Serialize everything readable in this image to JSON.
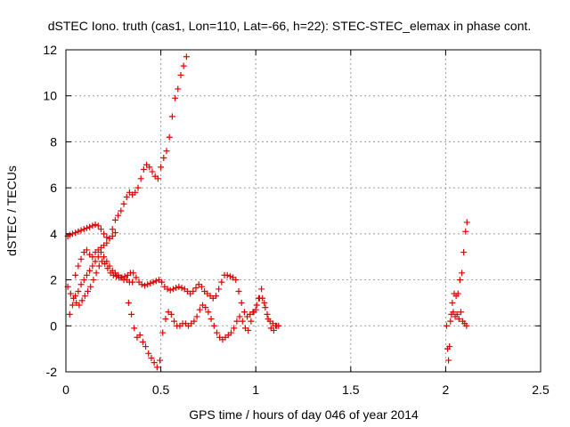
{
  "chart_data": {
    "type": "scatter",
    "title": "dSTEC Iono. truth (cas1, Lon=110, Lat=-66, h=22): STEC-STEC_elemax in phase cont.",
    "xlabel": "GPS time / hours of day 046 of year 2014",
    "ylabel": "dSTEC  / TECUs",
    "xlim": [
      0,
      2.5
    ],
    "ylim": [
      -2,
      12
    ],
    "grid": true,
    "marker": "+",
    "colors": {
      "series": "#e00000",
      "grid": "#9a9a9a",
      "axis": "#000000"
    },
    "x_ticks": [
      {
        "value": 0,
        "label": "0"
      },
      {
        "value": 0.5,
        "label": "0.5"
      },
      {
        "value": 1,
        "label": "1"
      },
      {
        "value": 1.5,
        "label": "1.5"
      },
      {
        "value": 2,
        "label": "2"
      },
      {
        "value": 2.5,
        "label": "2.5"
      }
    ],
    "y_ticks": [
      {
        "value": -2,
        "label": "-2"
      },
      {
        "value": 0,
        "label": "0"
      },
      {
        "value": 2,
        "label": "2"
      },
      {
        "value": 4,
        "label": "4"
      },
      {
        "value": 6,
        "label": "6"
      },
      {
        "value": 8,
        "label": "8"
      },
      {
        "value": 10,
        "label": "10"
      },
      {
        "value": 12,
        "label": "12"
      }
    ],
    "series": [
      {
        "name": "dSTEC",
        "points": [
          [
            0.01,
            3.9
          ],
          [
            0.02,
            3.95
          ],
          [
            0.035,
            4.0
          ],
          [
            0.05,
            4.05
          ],
          [
            0.065,
            4.1
          ],
          [
            0.08,
            4.15
          ],
          [
            0.095,
            4.2
          ],
          [
            0.11,
            4.25
          ],
          [
            0.125,
            4.3
          ],
          [
            0.14,
            4.35
          ],
          [
            0.155,
            4.4
          ],
          [
            0.17,
            4.35
          ],
          [
            0.185,
            4.2
          ],
          [
            0.2,
            4.0
          ],
          [
            0.215,
            3.85
          ],
          [
            0.23,
            3.8
          ],
          [
            0.245,
            3.9
          ],
          [
            0.26,
            4.05
          ],
          [
            0.01,
            1.7
          ],
          [
            0.025,
            1.4
          ],
          [
            0.04,
            1.2
          ],
          [
            0.055,
            1.0
          ],
          [
            0.07,
            0.9
          ],
          [
            0.085,
            1.1
          ],
          [
            0.1,
            1.3
          ],
          [
            0.115,
            1.5
          ],
          [
            0.13,
            1.7
          ],
          [
            0.145,
            2.0
          ],
          [
            0.16,
            2.3
          ],
          [
            0.175,
            2.6
          ],
          [
            0.19,
            2.8
          ],
          [
            0.205,
            2.7
          ],
          [
            0.22,
            2.5
          ],
          [
            0.235,
            2.3
          ],
          [
            0.25,
            2.2
          ],
          [
            0.265,
            2.15
          ],
          [
            0.28,
            2.1
          ],
          [
            0.295,
            2.1
          ],
          [
            0.31,
            2.15
          ],
          [
            0.325,
            2.2
          ],
          [
            0.34,
            2.3
          ],
          [
            0.355,
            2.3
          ],
          [
            0.37,
            2.1
          ],
          [
            0.385,
            1.9
          ],
          [
            0.4,
            1.8
          ],
          [
            0.415,
            1.75
          ],
          [
            0.43,
            1.8
          ],
          [
            0.445,
            1.85
          ],
          [
            0.46,
            1.9
          ],
          [
            0.475,
            1.95
          ],
          [
            0.49,
            2.0
          ],
          [
            0.505,
            1.9
          ],
          [
            0.52,
            1.7
          ],
          [
            0.535,
            1.6
          ],
          [
            0.55,
            1.55
          ],
          [
            0.565,
            1.6
          ],
          [
            0.58,
            1.65
          ],
          [
            0.595,
            1.7
          ],
          [
            0.61,
            1.65
          ],
          [
            0.625,
            1.6
          ],
          [
            0.64,
            1.5
          ],
          [
            0.655,
            1.4
          ],
          [
            0.67,
            1.5
          ],
          [
            0.685,
            1.65
          ],
          [
            0.7,
            1.8
          ],
          [
            0.715,
            1.7
          ],
          [
            0.73,
            1.5
          ],
          [
            0.745,
            1.4
          ],
          [
            0.76,
            1.3
          ],
          [
            0.775,
            1.2
          ],
          [
            0.79,
            1.3
          ],
          [
            0.805,
            1.6
          ],
          [
            0.82,
            1.9
          ],
          [
            0.835,
            2.2
          ],
          [
            0.85,
            2.2
          ],
          [
            0.865,
            2.15
          ],
          [
            0.88,
            2.1
          ],
          [
            0.895,
            2.0
          ],
          [
            0.91,
            1.5
          ],
          [
            0.925,
            1.0
          ],
          [
            0.94,
            0.6
          ],
          [
            0.955,
            0.4
          ],
          [
            0.97,
            0.5
          ],
          [
            0.985,
            0.6
          ],
          [
            1.0,
            0.7
          ],
          [
            1.015,
            1.2
          ],
          [
            1.03,
            1.6
          ],
          [
            1.045,
            1.0
          ],
          [
            1.06,
            0.5
          ],
          [
            1.075,
            0.2
          ],
          [
            1.09,
            0.1
          ],
          [
            1.105,
            0.0
          ],
          [
            1.12,
            0.0
          ],
          [
            0.05,
            2.2
          ],
          [
            0.065,
            2.6
          ],
          [
            0.08,
            2.9
          ],
          [
            0.095,
            3.2
          ],
          [
            0.11,
            3.3
          ],
          [
            0.125,
            3.1
          ],
          [
            0.14,
            3.0
          ],
          [
            0.155,
            3.2
          ],
          [
            0.17,
            3.3
          ],
          [
            0.185,
            3.4
          ],
          [
            0.2,
            3.5
          ],
          [
            0.215,
            3.6
          ],
          [
            0.23,
            3.8
          ],
          [
            0.245,
            4.2
          ],
          [
            0.26,
            4.6
          ],
          [
            0.275,
            4.8
          ],
          [
            0.29,
            5.0
          ],
          [
            0.305,
            5.3
          ],
          [
            0.32,
            5.6
          ],
          [
            0.335,
            5.8
          ],
          [
            0.35,
            5.7
          ],
          [
            0.365,
            5.8
          ],
          [
            0.38,
            6.0
          ],
          [
            0.395,
            6.4
          ],
          [
            0.41,
            6.8
          ],
          [
            0.425,
            7.0
          ],
          [
            0.44,
            6.9
          ],
          [
            0.455,
            6.7
          ],
          [
            0.47,
            6.5
          ],
          [
            0.485,
            6.4
          ],
          [
            0.5,
            6.9
          ],
          [
            0.515,
            7.3
          ],
          [
            0.53,
            7.6
          ],
          [
            0.545,
            8.2
          ],
          [
            0.56,
            9.1
          ],
          [
            0.575,
            9.9
          ],
          [
            0.59,
            10.3
          ],
          [
            0.605,
            10.9
          ],
          [
            0.62,
            11.3
          ],
          [
            0.635,
            11.7
          ],
          [
            0.02,
            0.5
          ],
          [
            0.035,
            0.9
          ],
          [
            0.05,
            1.3
          ],
          [
            0.065,
            1.5
          ],
          [
            0.08,
            1.8
          ],
          [
            0.095,
            2.0
          ],
          [
            0.11,
            2.2
          ],
          [
            0.125,
            2.4
          ],
          [
            0.14,
            2.6
          ],
          [
            0.155,
            2.8
          ],
          [
            0.17,
            3.0
          ],
          [
            0.185,
            3.2
          ],
          [
            0.2,
            3.0
          ],
          [
            0.215,
            2.8
          ],
          [
            0.23,
            2.6
          ],
          [
            0.245,
            2.4
          ],
          [
            0.26,
            2.3
          ],
          [
            0.275,
            2.2
          ],
          [
            0.29,
            2.1
          ],
          [
            0.305,
            2.0
          ],
          [
            0.32,
            2.0
          ],
          [
            0.335,
            1.9
          ],
          [
            0.35,
            1.9
          ],
          [
            0.33,
            1.0
          ],
          [
            0.345,
            0.5
          ],
          [
            0.36,
            -0.1
          ],
          [
            0.375,
            -0.5
          ],
          [
            0.39,
            -0.4
          ],
          [
            0.405,
            -0.7
          ],
          [
            0.42,
            -0.9
          ],
          [
            0.435,
            -1.2
          ],
          [
            0.45,
            -1.4
          ],
          [
            0.465,
            -1.6
          ],
          [
            0.48,
            -1.8
          ],
          [
            0.495,
            -1.5
          ],
          [
            0.51,
            -0.3
          ],
          [
            0.525,
            0.3
          ],
          [
            0.54,
            0.6
          ],
          [
            0.555,
            0.5
          ],
          [
            0.57,
            0.2
          ],
          [
            0.585,
            0.0
          ],
          [
            0.6,
            0.0
          ],
          [
            0.615,
            0.1
          ],
          [
            0.63,
            0.1
          ],
          [
            0.645,
            0.0
          ],
          [
            0.66,
            0.1
          ],
          [
            0.675,
            0.2
          ],
          [
            0.69,
            0.4
          ],
          [
            0.705,
            0.7
          ],
          [
            0.72,
            0.9
          ],
          [
            0.735,
            0.8
          ],
          [
            0.75,
            0.6
          ],
          [
            0.765,
            0.3
          ],
          [
            0.78,
            0.0
          ],
          [
            0.795,
            -0.3
          ],
          [
            0.81,
            -0.5
          ],
          [
            0.825,
            -0.6
          ],
          [
            0.84,
            -0.5
          ],
          [
            0.855,
            -0.4
          ],
          [
            0.87,
            -0.3
          ],
          [
            0.885,
            -0.1
          ],
          [
            0.9,
            0.2
          ],
          [
            0.915,
            0.4
          ],
          [
            0.93,
            0.2
          ],
          [
            0.945,
            -0.1
          ],
          [
            0.96,
            -0.2
          ],
          [
            0.975,
            0.2
          ],
          [
            0.99,
            0.6
          ],
          [
            1.005,
            0.9
          ],
          [
            1.02,
            1.2
          ],
          [
            1.035,
            1.2
          ],
          [
            1.05,
            0.8
          ],
          [
            1.065,
            0.3
          ],
          [
            1.08,
            -0.1
          ],
          [
            1.095,
            -0.2
          ],
          [
            1.11,
            0.0
          ],
          [
            2.005,
            0.0
          ],
          [
            2.01,
            -1.0
          ],
          [
            2.015,
            -1.5
          ],
          [
            2.02,
            -0.9
          ],
          [
            2.025,
            0.2
          ],
          [
            2.03,
            0.5
          ],
          [
            2.04,
            0.6
          ],
          [
            2.05,
            0.4
          ],
          [
            2.06,
            0.5
          ],
          [
            2.07,
            0.3
          ],
          [
            2.08,
            0.6
          ],
          [
            2.09,
            0.2
          ],
          [
            2.1,
            0.1
          ],
          [
            2.11,
            0.0
          ],
          [
            2.035,
            1.0
          ],
          [
            2.045,
            1.4
          ],
          [
            2.055,
            1.3
          ],
          [
            2.065,
            1.4
          ],
          [
            2.075,
            2.0
          ],
          [
            2.085,
            2.3
          ],
          [
            2.095,
            3.2
          ],
          [
            2.105,
            4.1
          ],
          [
            2.112,
            4.5
          ]
        ]
      }
    ]
  }
}
